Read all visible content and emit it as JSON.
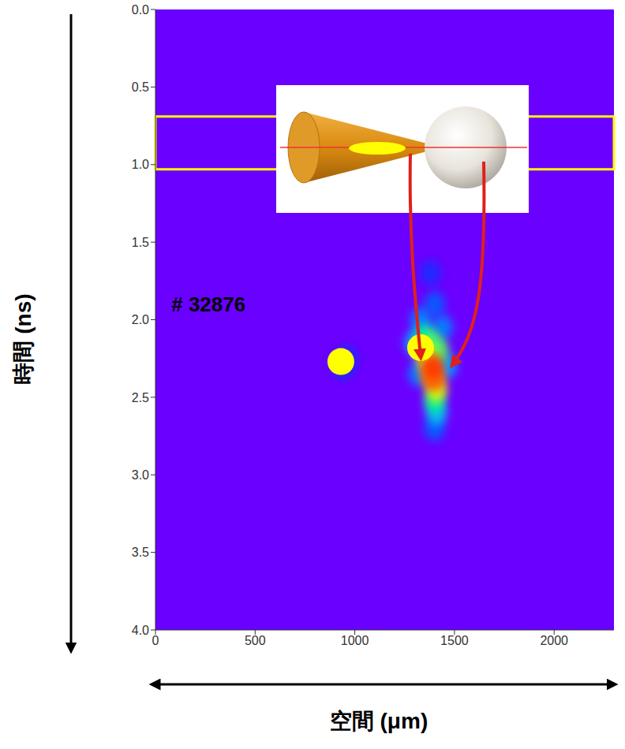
{
  "chart_data": {
    "type": "heatmap",
    "title": "# 32876",
    "x_label": "空間 (μm)",
    "y_label": "時間 (ns)",
    "xlim": [
      0,
      2300
    ],
    "xticks": [
      0,
      500,
      1000,
      1500,
      2000
    ],
    "ylim": [
      0,
      4
    ],
    "yticks": [
      {
        "value": 0,
        "label": "0.0"
      },
      0.5,
      {
        "value": 1,
        "label": "1.0"
      },
      1.5,
      {
        "value": 2,
        "label": "2.0"
      },
      2.5,
      {
        "value": 3,
        "label": "3.0"
      },
      3.5,
      {
        "value": 4,
        "label": "4.0"
      }
    ],
    "grid": false,
    "intensity_range": [
      0,
      1
    ],
    "cells": [
      {
        "x": 960,
        "y": 2.25,
        "intensity": 0.15
      },
      {
        "x": 1380,
        "y": 1.7,
        "intensity": 0.15
      },
      {
        "x": 940,
        "y": 2.3,
        "intensity": 0.2
      },
      {
        "x": 1400,
        "y": 1.9,
        "intensity": 0.25
      },
      {
        "x": 1400,
        "y": 2.7,
        "intensity": 0.25
      },
      {
        "x": 1330,
        "y": 2.0,
        "intensity": 0.3
      },
      {
        "x": 1440,
        "y": 2.05,
        "intensity": 0.3
      },
      {
        "x": 1320,
        "y": 2.35,
        "intensity": 0.3
      },
      {
        "x": 1300,
        "y": 2.15,
        "intensity": 0.35
      },
      {
        "x": 1460,
        "y": 2.3,
        "intensity": 0.35
      },
      {
        "x": 1410,
        "y": 2.6,
        "intensity": 0.4
      },
      {
        "x": 1350,
        "y": 2.1,
        "intensity": 0.5
      },
      {
        "x": 1400,
        "y": 2.52,
        "intensity": 0.55
      },
      {
        "x": 1380,
        "y": 2.15,
        "intensity": 0.6
      },
      {
        "x": 1420,
        "y": 2.2,
        "intensity": 0.6
      },
      {
        "x": 1360,
        "y": 2.25,
        "intensity": 0.7
      },
      {
        "x": 1410,
        "y": 2.45,
        "intensity": 0.7
      },
      {
        "x": 1380,
        "y": 2.35,
        "intensity": 0.85
      },
      {
        "x": 1400,
        "y": 2.38,
        "intensity": 0.9
      },
      {
        "x": 1390,
        "y": 2.3,
        "intensity": 0.95
      }
    ],
    "annotations": [
      {
        "type": "rect",
        "x": [
          0,
          2300
        ],
        "y": [
          0.69,
          1.03
        ],
        "color": "#ffff00"
      },
      {
        "type": "circle",
        "x": 930,
        "y": 2.27,
        "color": "#ffff00"
      },
      {
        "type": "circle",
        "x": 1330,
        "y": 2.18,
        "color": "#ffff00"
      },
      {
        "type": "text",
        "text": "# 32876",
        "x": 80,
        "y": 1.9
      }
    ]
  }
}
